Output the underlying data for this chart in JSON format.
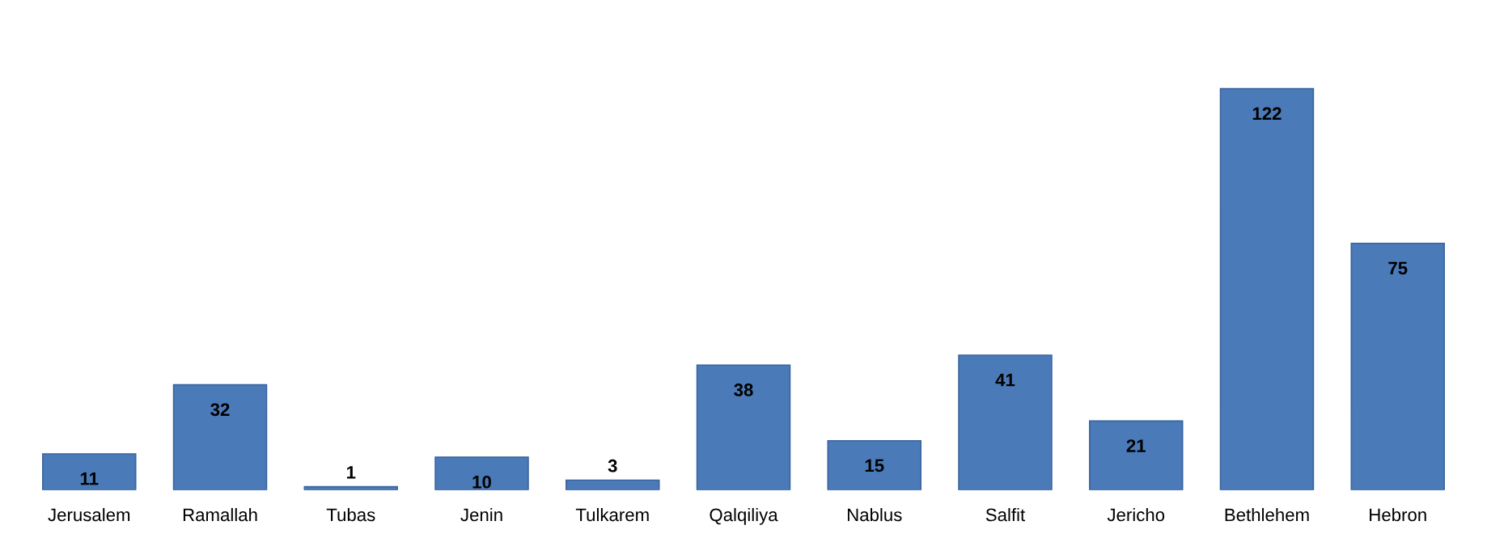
{
  "chart_data": {
    "type": "bar",
    "categories": [
      "Jerusalem",
      "Ramallah",
      "Tubas",
      "Jenin",
      "Tulkarem",
      "Qalqiliya",
      "Nablus",
      "Salfit",
      "Jericho",
      "Bethlehem",
      "Hebron"
    ],
    "values": [
      11,
      32,
      1,
      10,
      3,
      38,
      15,
      41,
      21,
      122,
      75
    ],
    "color": "#4a7ab8",
    "data_labels": true,
    "grid": false,
    "legend": false
  }
}
